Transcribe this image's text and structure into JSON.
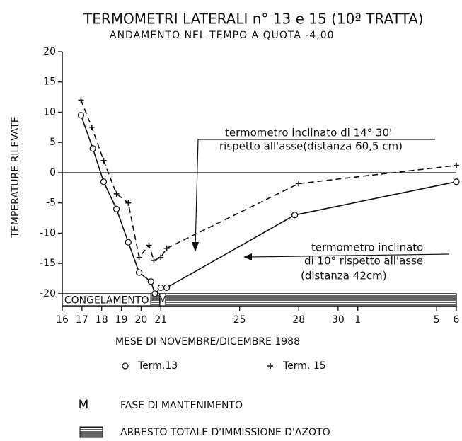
{
  "chart_data": {
    "type": "line",
    "title": "TERMOMETRI LATERALI n° 13 e 15 (10ª TRATTA)",
    "subtitle": "ANDAMENTO NEL TEMPO A QUOTA -4,00",
    "y_label": "TEMPERATURE RILEVATE",
    "x_label": "MESE DI NOVEMBRE/DICEMBRE 1988",
    "xlim": [
      16,
      36
    ],
    "xticks": [
      16,
      17,
      18,
      19,
      20,
      21,
      25,
      28,
      30,
      {
        "value": 31,
        "label": "1"
      },
      {
        "value": 35,
        "label": "5"
      },
      {
        "value": 36,
        "label": "6"
      }
    ],
    "ylim": [
      -22,
      20
    ],
    "yticks": [
      -20,
      -15,
      -10,
      -5,
      0,
      5,
      10,
      15,
      20
    ],
    "zero_line": true,
    "color": "#111111",
    "series": [
      {
        "name": "Term.13",
        "marker": "circle",
        "dash": "solid",
        "x": [
          16.95,
          17.55,
          18.1,
          18.75,
          19.35,
          19.9,
          20.5,
          20.7,
          21.0,
          21.3,
          27.8,
          36
        ],
        "values": [
          9.5,
          4,
          -1.5,
          -6,
          -11.5,
          -16.5,
          -18,
          -20,
          -19,
          -19,
          -7,
          -1.5
        ]
      },
      {
        "name": "Term. 15",
        "marker": "plus",
        "dash": "dashed",
        "x": [
          16.95,
          17.5,
          18.1,
          18.75,
          19.35,
          19.9,
          20.4,
          20.65,
          21.0,
          21.3,
          28.0,
          36
        ],
        "values": [
          12,
          7.5,
          2,
          -3.5,
          -5,
          -14,
          -12,
          -14.5,
          -14,
          -12.5,
          -1.8,
          1.2
        ]
      }
    ],
    "bands": [
      {
        "label": "CONGELAMENTO",
        "start": 16,
        "end": 20.5,
        "style": "plain"
      },
      {
        "start": 20.5,
        "end": 20.95,
        "style": "hatched"
      },
      {
        "label": "M",
        "start": 20.95,
        "end": 21.25,
        "style": "plain"
      },
      {
        "start": 21.25,
        "end": 36,
        "style": "hatched"
      }
    ],
    "annotations": [
      {
        "lines": [
          "termometro inclinato di 14° 30'",
          "rispetto all'asse(distanza 60,5 cm)"
        ]
      },
      {
        "lines": [
          "termometro inclinato",
          "di 10° rispetto all'asse",
          "(distanza 42cm)"
        ]
      }
    ],
    "notes": [
      {
        "symbol": "M",
        "text": "FASE DI MANTENIMENTO"
      },
      {
        "text": "ARRESTO TOTALE D'IMMISSIONE D'AZOTO"
      }
    ]
  }
}
